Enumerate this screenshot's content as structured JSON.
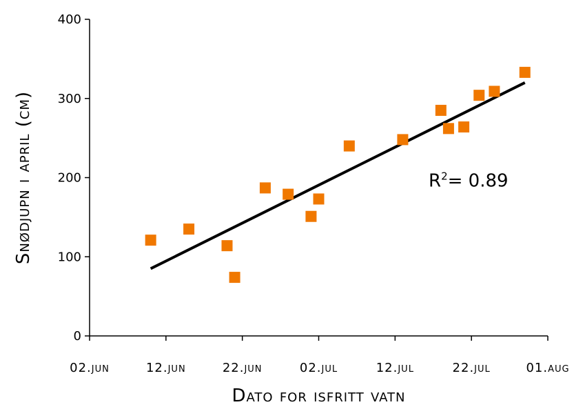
{
  "chart_data": {
    "type": "scatter",
    "title": "",
    "xlabel": "Dato for isfritt vatn",
    "ylabel": "Snødjupn i april (cm)",
    "x_type": "date",
    "xlim": [
      "2000-06-02",
      "2000-08-01"
    ],
    "ylim": [
      0,
      400
    ],
    "xtick_values": [
      "2000-06-02",
      "2000-06-12",
      "2000-06-22",
      "2000-07-02",
      "2000-07-12",
      "2000-07-22",
      "2000-08-01"
    ],
    "xtick_labels": [
      "02.jun",
      "12.jun",
      "22.jun",
      "02.jul",
      "12.jul",
      "22.jul",
      "01.aug"
    ],
    "yticks": [
      0,
      100,
      200,
      300,
      400
    ],
    "grid": false,
    "legend": "none",
    "series": [
      {
        "color": "#F07800",
        "marker": "square",
        "x": [
          "2000-06-10",
          "2000-06-15",
          "2000-06-20",
          "2000-06-21",
          "2000-06-25",
          "2000-06-28",
          "2000-07-01",
          "2000-07-02",
          "2000-07-06",
          "2000-07-13",
          "2000-07-18",
          "2000-07-19",
          "2000-07-21",
          "2000-07-23",
          "2000-07-25",
          "2000-07-29"
        ],
        "y": [
          121,
          135,
          114,
          74,
          187,
          179,
          151,
          173,
          240,
          248,
          285,
          262,
          264,
          304,
          309,
          333
        ]
      }
    ],
    "trendline": {
      "color": "#000000",
      "type": "linear",
      "x": [
        "2000-06-10",
        "2000-07-29"
      ],
      "y": [
        85,
        320
      ]
    },
    "annotations": [
      {
        "text_main": "R",
        "text_sup": "2",
        "text_rest": "= 0.89",
        "x": "2000-07-20",
        "y": 200
      }
    ]
  }
}
